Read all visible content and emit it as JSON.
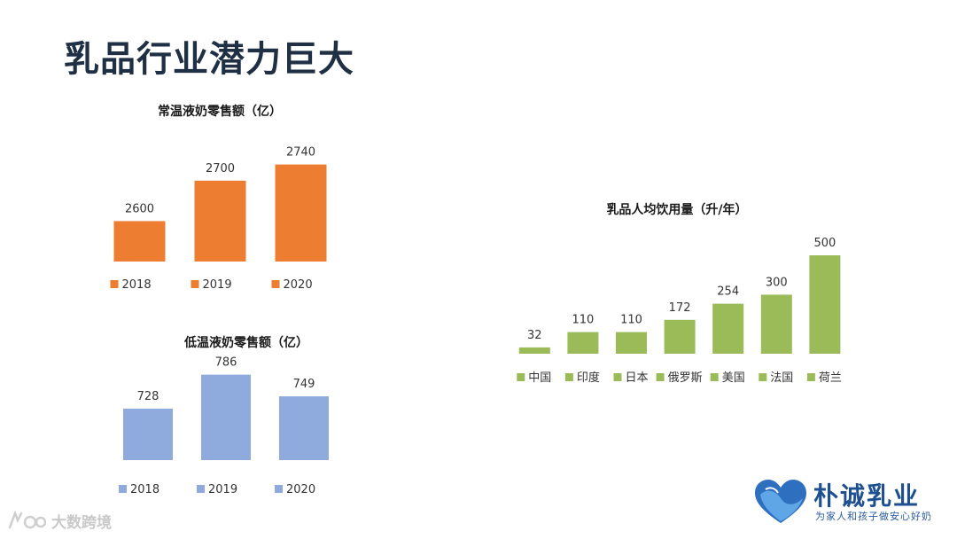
{
  "page": {
    "title": "乳品行业潜力巨大"
  },
  "chart_data": [
    {
      "id": "ambient",
      "type": "bar",
      "title": "常温液奶零售额（亿）",
      "categories": [
        "2018",
        "2019",
        "2020"
      ],
      "values": [
        2600,
        2700,
        2740
      ],
      "ylim": [
        2500,
        2750
      ],
      "color": "#ed7d31",
      "legend": [
        "2018",
        "2019",
        "2020"
      ],
      "legend_position": "bottom"
    },
    {
      "id": "chilled",
      "type": "bar",
      "title": "低温液奶零售额（亿）",
      "categories": [
        "2018",
        "2019",
        "2020"
      ],
      "values": [
        728,
        786,
        749
      ],
      "ylim": [
        640,
        790
      ],
      "color": "#8faadc",
      "legend": [
        "2018",
        "2019",
        "2020"
      ],
      "legend_position": "bottom"
    },
    {
      "id": "per-capita",
      "type": "bar",
      "title": "乳品人均饮用量（升/年）",
      "categories": [
        "中国",
        "印度",
        "日本",
        "俄罗斯",
        "美国",
        "法国",
        "荷兰"
      ],
      "values": [
        32,
        110,
        110,
        172,
        254,
        300,
        500
      ],
      "ylim": [
        0,
        500
      ],
      "color": "#9bbb59",
      "legend": [
        "中国",
        "印度",
        "日本",
        "俄罗斯",
        "美国",
        "法国",
        "荷兰"
      ],
      "legend_position": "bottom"
    }
  ],
  "logo": {
    "name": "朴诚乳业",
    "slogan": "为家人和孩子做安心好奶",
    "color": "#1d4f91"
  },
  "watermark": {
    "text": "大数跨境"
  }
}
